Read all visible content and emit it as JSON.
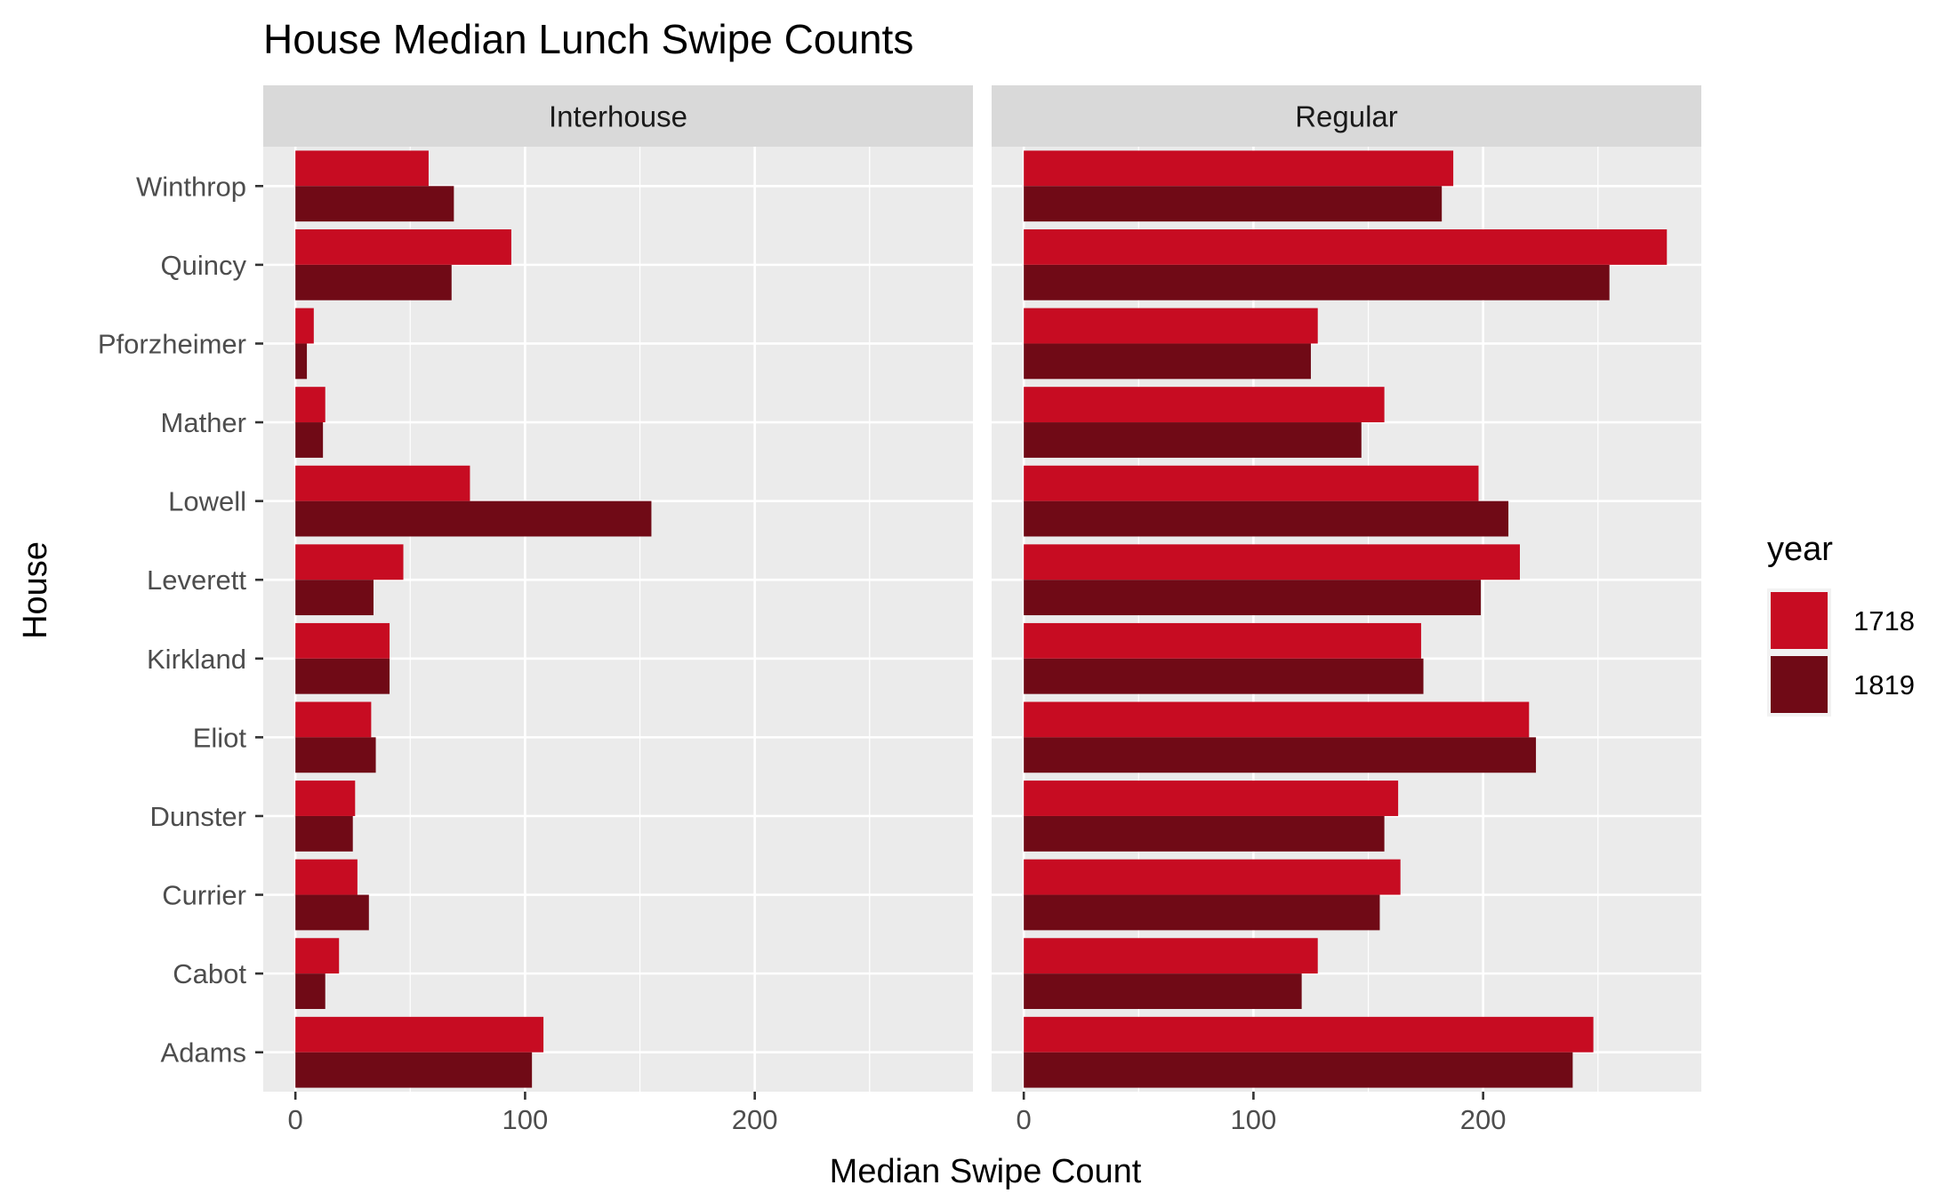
{
  "chart_data": {
    "type": "bar",
    "orientation": "horizontal",
    "title": "House Median Lunch Swipe Counts",
    "xlabel": "Median Swipe Count",
    "ylabel": "House",
    "categories": [
      "Adams",
      "Cabot",
      "Currier",
      "Dunster",
      "Eliot",
      "Kirkland",
      "Leverett",
      "Lowell",
      "Mather",
      "Pforzheimer",
      "Quincy",
      "Winthrop"
    ],
    "xlim": [
      -14,
      295
    ],
    "xticks": [
      0,
      100,
      200
    ],
    "grid": true,
    "legend": {
      "title": "year",
      "position": "right",
      "entries": [
        {
          "label": "1718",
          "color": "#c70c22"
        },
        {
          "label": "1819",
          "color": "#700a16"
        }
      ]
    },
    "panels": [
      {
        "name": "Interhouse",
        "series": [
          {
            "name": "1718",
            "values": [
              108,
              19,
              27,
              26,
              33,
              41,
              47,
              76,
              13,
              8,
              94,
              58
            ]
          },
          {
            "name": "1819",
            "values": [
              103,
              13,
              32,
              25,
              35,
              41,
              34,
              155,
              12,
              5,
              68,
              69
            ]
          }
        ]
      },
      {
        "name": "Regular",
        "series": [
          {
            "name": "1718",
            "values": [
              248,
              128,
              164,
              163,
              220,
              173,
              216,
              198,
              157,
              128,
              280,
              187
            ]
          },
          {
            "name": "1819",
            "values": [
              239,
              121,
              155,
              157,
              223,
              174,
              199,
              211,
              147,
              125,
              255,
              182
            ]
          }
        ]
      }
    ]
  }
}
